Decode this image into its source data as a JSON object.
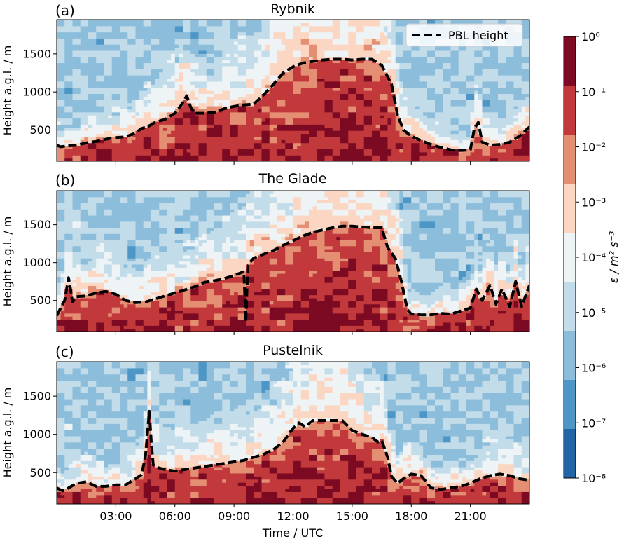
{
  "chart_data": [
    {
      "type": "heatmap",
      "panel_label": "(a)",
      "title": "Rybnik",
      "ylabel": "Height a.g.l. / m",
      "xlabel": "",
      "xlim_hours": [
        0,
        24
      ],
      "ylim": [
        90,
        1950
      ],
      "y_ticks": [
        500,
        1000,
        1500
      ],
      "y_tick_labels": [
        "500",
        "1000",
        "1500"
      ],
      "show_x_tick_labels": false,
      "legend": {
        "label": "PBL height",
        "position": "top-right"
      },
      "pbl_height": {
        "name": "PBL height",
        "x_hours": [
          0.0,
          0.2,
          0.5,
          1.0,
          1.5,
          2.0,
          2.5,
          3.0,
          3.5,
          4.0,
          4.3,
          4.6,
          5.0,
          5.5,
          6.0,
          6.3,
          6.5,
          6.6,
          6.8,
          7.0,
          7.5,
          8.0,
          8.5,
          9.0,
          9.5,
          10.0,
          10.5,
          11.0,
          11.5,
          12.0,
          12.5,
          13.0,
          13.5,
          14.0,
          14.5,
          15.0,
          15.5,
          16.0,
          16.5,
          17.0,
          17.3,
          17.6,
          18.0,
          18.5,
          19.0,
          19.5,
          20.0,
          20.5,
          21.0,
          21.2,
          21.4,
          21.6,
          22.0,
          22.5,
          23.0,
          23.5,
          24.0
        ],
        "values": [
          300,
          280,
          290,
          300,
          330,
          350,
          380,
          400,
          410,
          460,
          520,
          540,
          600,
          640,
          720,
          820,
          900,
          950,
          800,
          720,
          720,
          730,
          780,
          810,
          830,
          840,
          960,
          1100,
          1250,
          1330,
          1380,
          1400,
          1420,
          1430,
          1430,
          1420,
          1430,
          1430,
          1350,
          1100,
          700,
          500,
          420,
          360,
          310,
          270,
          240,
          230,
          240,
          520,
          600,
          340,
          300,
          310,
          340,
          420,
          540
        ]
      }
    },
    {
      "type": "heatmap",
      "panel_label": "(b)",
      "title": "The Glade",
      "ylabel": "Height a.g.l. / m",
      "xlabel": "",
      "xlim_hours": [
        0,
        24
      ],
      "ylim": [
        90,
        1950
      ],
      "y_ticks": [
        500,
        1000,
        1500
      ],
      "y_tick_labels": [
        "500",
        "1000",
        "1500"
      ],
      "show_x_tick_labels": false,
      "pbl_height": {
        "name": "PBL height",
        "x_hours": [
          0.0,
          0.2,
          0.4,
          0.6,
          0.7,
          0.8,
          1.0,
          1.5,
          2.0,
          2.5,
          3.0,
          3.5,
          4.0,
          4.5,
          5.0,
          5.5,
          6.0,
          6.5,
          7.0,
          7.5,
          8.0,
          8.5,
          9.0,
          9.5,
          9.6,
          9.7,
          9.8,
          10.0,
          10.5,
          11.0,
          11.5,
          12.0,
          12.5,
          13.0,
          13.5,
          14.0,
          14.5,
          15.0,
          15.5,
          16.0,
          16.5,
          16.8,
          17.2,
          17.5,
          17.8,
          18.0,
          18.5,
          19.0,
          19.5,
          20.0,
          20.5,
          21.0,
          21.3,
          21.6,
          22.0,
          22.3,
          22.6,
          23.0,
          23.3,
          23.6,
          24.0
        ],
        "values": [
          300,
          400,
          500,
          800,
          650,
          480,
          550,
          560,
          600,
          620,
          580,
          500,
          470,
          480,
          520,
          560,
          600,
          640,
          680,
          740,
          760,
          790,
          830,
          880,
          220,
          960,
          1000,
          1060,
          1110,
          1160,
          1230,
          1290,
          1350,
          1400,
          1430,
          1460,
          1480,
          1480,
          1470,
          1460,
          1460,
          1200,
          1050,
          750,
          380,
          320,
          310,
          310,
          330,
          320,
          360,
          400,
          650,
          500,
          700,
          450,
          650,
          420,
          750,
          420,
          700
        ]
      }
    },
    {
      "type": "heatmap",
      "panel_label": "(c)",
      "title": "Pustelnik",
      "ylabel": "Height a.g.l. / m",
      "xlabel": "Time / UTC",
      "xlim_hours": [
        0,
        24
      ],
      "ylim": [
        90,
        1950
      ],
      "y_ticks": [
        500,
        1000,
        1500
      ],
      "y_tick_labels": [
        "500",
        "1000",
        "1500"
      ],
      "x_ticks_hours": [
        3,
        6,
        9,
        12,
        15,
        18,
        21
      ],
      "x_tick_labels": [
        "03:00",
        "06:00",
        "09:00",
        "12:00",
        "15:00",
        "18:00",
        "21:00"
      ],
      "show_x_tick_labels": true,
      "pbl_height": {
        "name": "PBL height",
        "x_hours": [
          0.0,
          0.3,
          0.6,
          1.0,
          1.5,
          2.0,
          2.5,
          3.0,
          3.5,
          4.0,
          4.3,
          4.5,
          4.7,
          4.8,
          4.9,
          5.0,
          5.2,
          5.5,
          6.0,
          6.5,
          7.0,
          7.5,
          8.0,
          8.5,
          9.0,
          9.5,
          10.0,
          10.5,
          11.0,
          11.5,
          12.0,
          12.3,
          12.6,
          13.0,
          13.5,
          14.0,
          14.5,
          15.0,
          15.5,
          16.0,
          16.3,
          16.5,
          16.8,
          17.0,
          17.3,
          17.6,
          18.0,
          18.5,
          19.0,
          19.5,
          20.0,
          20.5,
          21.0,
          21.5,
          22.0,
          22.5,
          23.0,
          23.5,
          24.0
        ],
        "values": [
          300,
          260,
          300,
          360,
          380,
          320,
          320,
          340,
          340,
          420,
          470,
          700,
          1300,
          900,
          600,
          580,
          560,
          540,
          520,
          540,
          560,
          580,
          600,
          620,
          640,
          660,
          700,
          740,
          800,
          900,
          1080,
          1150,
          1100,
          1180,
          1180,
          1180,
          1180,
          1050,
          1000,
          960,
          900,
          920,
          700,
          450,
          360,
          420,
          480,
          460,
          300,
          280,
          300,
          320,
          360,
          420,
          460,
          480,
          460,
          420,
          400
        ]
      }
    }
  ],
  "colorbar": {
    "label": "ε / m² s⁻³",
    "tick_labels": [
      "10⁰",
      "10⁻¹",
      "10⁻²",
      "10⁻³",
      "10⁻⁴",
      "10⁻⁵",
      "10⁻⁶",
      "10⁻⁷",
      "10⁻⁸"
    ],
    "colors_top_to_bottom": [
      "#7b0a22",
      "#c2393c",
      "#e48e73",
      "#fbd7c3",
      "#eef3f6",
      "#c3dcea",
      "#8cbedc",
      "#4d96c5",
      "#2364a6"
    ]
  }
}
